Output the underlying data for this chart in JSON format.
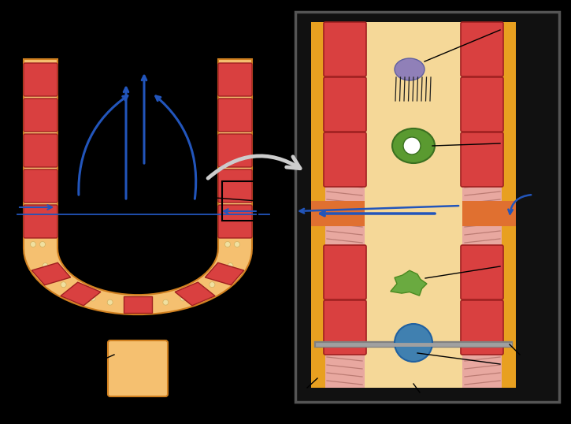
{
  "bg_color": "#000000",
  "arrow_color": "#2255BB",
  "sponge_outer_fill": "#F5C070",
  "sponge_outer_edge": "#D08020",
  "choanocyte_fill": "#D94040",
  "choanocyte_edge": "#A02020",
  "mesohyl_fill": "#F5D898",
  "flagella_fill": "#E8A8A0",
  "flagella_line": "#B07068",
  "border_fill": "#E8A020",
  "band_fill": "#E07030",
  "pore_fill": "#F5D898",
  "green_cell": "#5A9A30",
  "green_cell_edge": "#3A7020",
  "green_amoeba": "#6AAA40",
  "green_amoeba_edge": "#4A8A20",
  "blue_cell": "#4080B0",
  "blue_cell_edge": "#2060A0",
  "purple_cell": "#9080B8",
  "purple_cell_edge": "#6060A0",
  "spicule_dark": "#808080",
  "spicule_light": "#A0A0A0",
  "big_arrow_color": "#CCCCCC",
  "annotation_color": "#000000",
  "panel_border": "#555555",
  "dot_fill": "#F0E0A0",
  "dot_edge": "#D0B060"
}
